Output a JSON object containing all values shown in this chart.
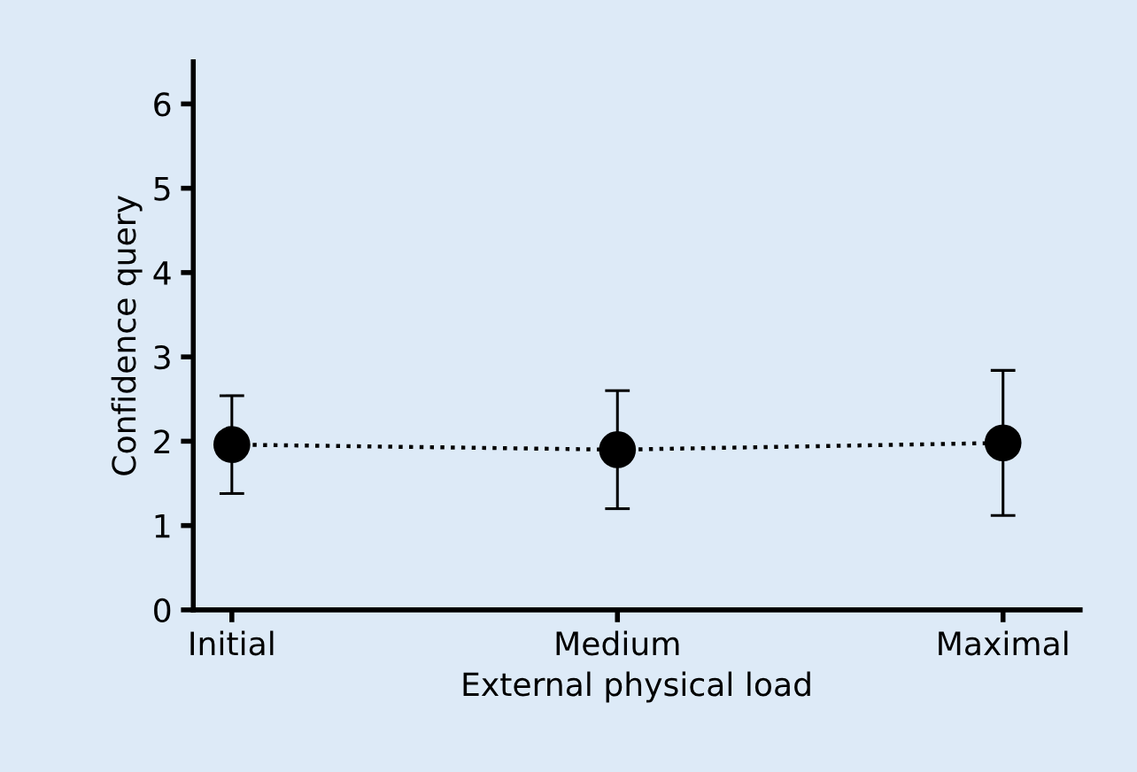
{
  "chart_data": {
    "type": "line",
    "xlabel": "External physical load",
    "ylabel": "Confidence query",
    "categories": [
      "Initial",
      "Medium",
      "Maximal"
    ],
    "series": [
      {
        "color": "#000000",
        "values": [
          1.96,
          1.9,
          1.98
        ],
        "errors": [
          0.58,
          0.7,
          0.86
        ]
      }
    ],
    "ylim": [
      0,
      6.5
    ],
    "yticks": [
      0,
      1,
      2,
      3,
      4,
      5,
      6
    ],
    "grid": false,
    "legend": false,
    "marker": "circle",
    "line_style": "dotted"
  }
}
